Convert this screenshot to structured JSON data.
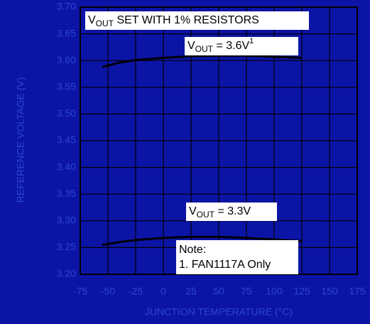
{
  "chart_data": {
    "type": "line",
    "xlabel": "JUNCTION TEMPERATURE (°C)",
    "ylabel": "REFERENCE VOLTAGE (V)",
    "x": [
      -55,
      -40,
      -25,
      0,
      25,
      50,
      75,
      100,
      125
    ],
    "series": [
      {
        "color": "#000000",
        "values": [
          3.588,
          3.596,
          3.601,
          3.605,
          3.608,
          3.609,
          3.609,
          3.607,
          3.605
        ]
      },
      {
        "color": "#000000",
        "values": [
          3.255,
          3.26,
          3.264,
          3.268,
          3.27,
          3.27,
          3.268,
          3.265,
          3.262
        ]
      }
    ],
    "xlim": [
      -75,
      175
    ],
    "xticks": [
      -75,
      -50,
      -25,
      0,
      25,
      50,
      75,
      100,
      125,
      150,
      175
    ],
    "ylim": [
      3.2,
      3.7
    ],
    "yticks": [
      {
        "value": 3.2,
        "label": "3.20"
      },
      3.25,
      {
        "value": 3.3,
        "label": "3.30"
      },
      3.35,
      {
        "value": 3.4,
        "label": "3.40"
      },
      3.45,
      {
        "value": 3.5,
        "label": "3.50"
      },
      3.55,
      {
        "value": 3.6,
        "label": "3.60"
      },
      3.65,
      {
        "value": 3.7,
        "label": "3.70"
      }
    ],
    "grid": true,
    "annotations": [
      {
        "main": "V",
        "sub": "OUT",
        "rest": " SET WITH 1% RESISTORS"
      },
      {
        "main": "V",
        "sub": "OUT",
        "rest": " = 3.6V",
        "sup": "1"
      },
      {
        "main": "V",
        "sub": "OUT",
        "rest": " = 3.3V"
      }
    ],
    "note": [
      "Note:",
      "1. FAN1117A Only"
    ]
  }
}
